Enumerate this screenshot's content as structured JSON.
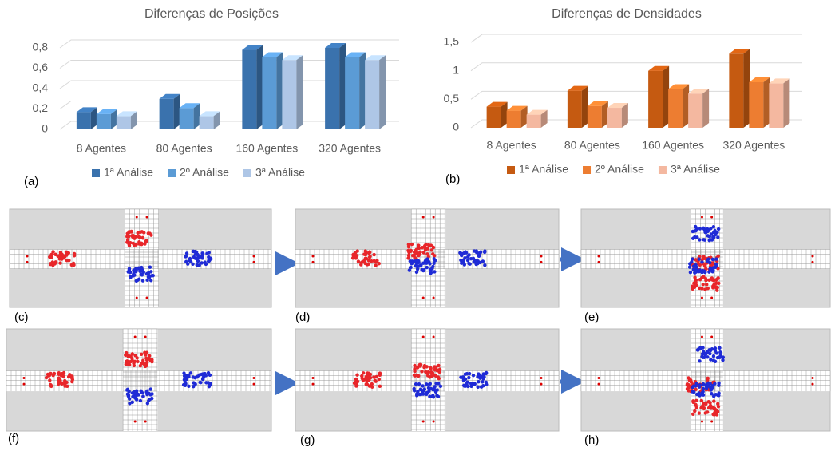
{
  "chart_data": [
    {
      "type": "bar",
      "title": "Diferenças de Posições",
      "categories": [
        "8 Agentes",
        "80 Agentes",
        "160 Agentes",
        "320 Agentes"
      ],
      "series": [
        {
          "name": "1ª Análise",
          "color": "#3a72ad",
          "values": [
            0.17,
            0.3,
            0.78,
            0.8
          ]
        },
        {
          "name": "2º Análise",
          "color": "#5b9bd5",
          "values": [
            0.15,
            0.21,
            0.71,
            0.71
          ]
        },
        {
          "name": "3ª Análise",
          "color": "#aec6e6",
          "values": [
            0.13,
            0.13,
            0.68,
            0.68
          ]
        }
      ],
      "ylim": [
        0,
        0.9
      ],
      "yticks": [
        0,
        {
          "value": 0.2,
          "label": "0,2"
        },
        {
          "value": 0.4,
          "label": "0,4"
        },
        {
          "value": 0.6,
          "label": "0,6"
        },
        {
          "value": 0.8,
          "label": "0,8"
        }
      ],
      "grid": true,
      "legend": "bottom"
    },
    {
      "type": "bar",
      "title": "Diferenças de Densidades",
      "categories": [
        "8 Agentes",
        "80 Agentes",
        "160 Agentes",
        "320 Agentes"
      ],
      "series": [
        {
          "name": "1ª Análise",
          "color": "#c55a11",
          "values": [
            0.37,
            0.65,
            1.0,
            1.3
          ]
        },
        {
          "name": "2º Análise",
          "color": "#ed7d31",
          "values": [
            0.3,
            0.38,
            0.68,
            0.8
          ]
        },
        {
          "name": "3ª Análise",
          "color": "#f4b8a0",
          "values": [
            0.23,
            0.35,
            0.6,
            0.78
          ]
        }
      ],
      "ylim": [
        0,
        1.6
      ],
      "yticks": [
        0,
        {
          "value": 0.5,
          "label": "0,5"
        },
        1,
        {
          "value": 1.5,
          "label": "1,5"
        }
      ],
      "grid": true,
      "legend": "bottom"
    }
  ],
  "panel_labels": [
    "(a)",
    "(b)",
    "(c)",
    "(d)",
    "(e)",
    "(f)",
    "(g)",
    "(h)"
  ]
}
